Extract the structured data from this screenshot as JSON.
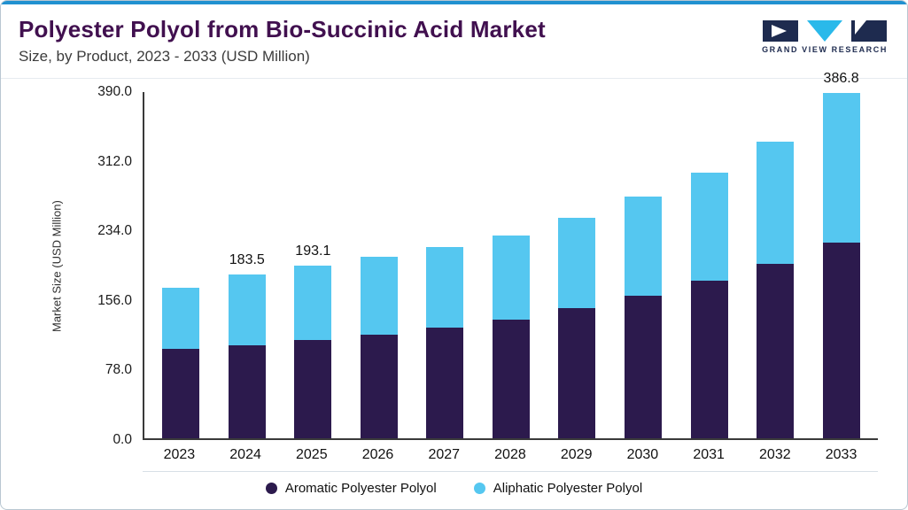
{
  "header": {
    "title": "Polyester Polyol from Bio-Succinic Acid Market",
    "subtitle": "Size, by Product, 2023 - 2033 (USD Million)"
  },
  "logo": {
    "text": "GRAND VIEW RESEARCH"
  },
  "colors": {
    "accent": "#2191d0",
    "title": "#41104f",
    "logo_navy": "#1e2b4f",
    "logo_cyan": "#2ab9ea"
  },
  "chart_data": {
    "type": "bar",
    "stacked": true,
    "title": "Polyester Polyol from Bio-Succinic Acid Market Size, by Product, 2023 - 2033 (USD Million)",
    "xlabel": "",
    "ylabel": "Market Size (USD Million)",
    "ylim": [
      0,
      390
    ],
    "grid": false,
    "legend_position": "bottom",
    "yticks": [
      390,
      312,
      234,
      156,
      78,
      0
    ],
    "ytick_labels": [
      "390.0",
      "312.0",
      "234.0",
      "156.0",
      "78.0",
      "0.0"
    ],
    "categories": [
      "2023",
      "2024",
      "2025",
      "2026",
      "2027",
      "2028",
      "2029",
      "2030",
      "2031",
      "2032",
      "2033"
    ],
    "series": [
      {
        "key": "aromatic",
        "name": "Aromatic Polyester Polyol",
        "color": "#2c1a4d",
        "values": [
          100,
          104,
          110,
          116,
          124,
          133,
          146,
          160,
          177,
          196,
          219
        ]
      },
      {
        "key": "aliphatic",
        "name": "Aliphatic Polyester Polyol",
        "color": "#55c7f0",
        "values": [
          69,
          79.5,
          83.1,
          87,
          90,
          94,
          101,
          111,
          121,
          136,
          167.8
        ]
      }
    ],
    "totals": [
      169,
      183.5,
      193.1,
      203,
      214,
      227,
      247,
      271,
      298,
      332,
      386.8
    ],
    "total_labels": [
      "",
      "183.5",
      "193.1",
      "",
      "",
      "",
      "",
      "",
      "",
      "",
      "386.8"
    ]
  }
}
